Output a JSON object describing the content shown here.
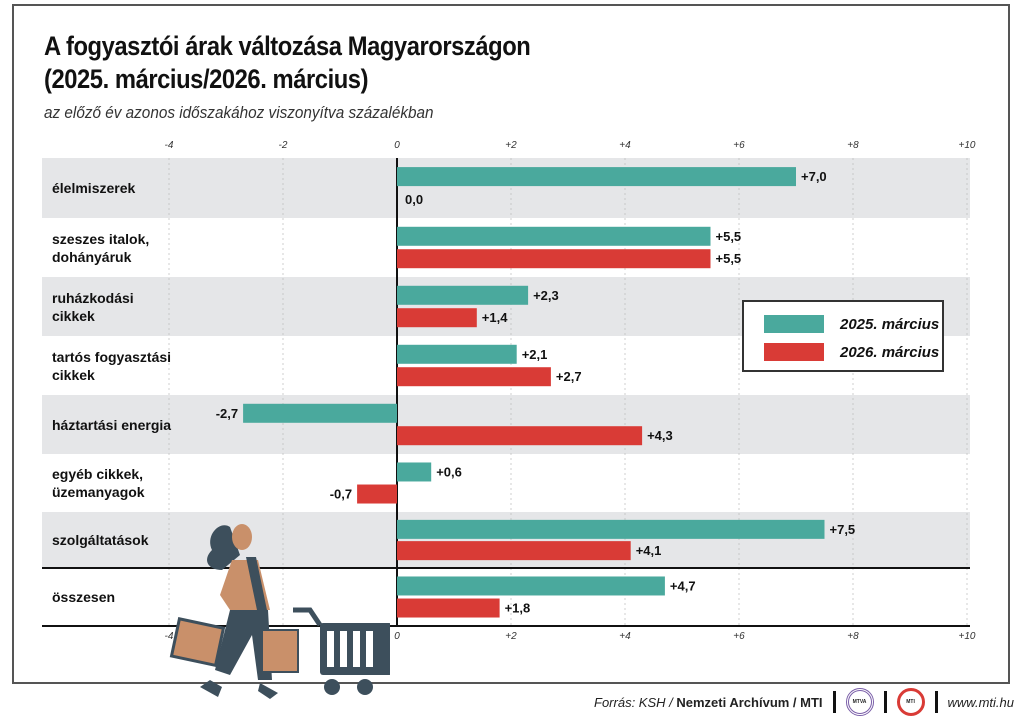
{
  "title_line1": "A fogyasztói árak változása Magyarországon",
  "title_line2": "(2025. március/2026. március)",
  "subtitle": "az előző év azonos időszakához viszonyítva százalékban",
  "footer": {
    "source_prefix": "Forrás: KSH / ",
    "source_bold": "Nemzeti Archívum / MTI",
    "logo1": "MTVA",
    "logo2": "MTI",
    "url": "www.mti.hu"
  },
  "colors": {
    "s2025": "#4aa99d",
    "s2026": "#d93b36",
    "row_gray": "#e5e6e8"
  },
  "chart_data": {
    "type": "bar",
    "orientation": "horizontal",
    "title": "A fogyasztói árak változása Magyarországon (2025. március/2026. március)",
    "xlim": [
      -4,
      10
    ],
    "ticks": [
      "-4",
      "-2",
      "0",
      "+2",
      "+4",
      "+6",
      "+8",
      "+10"
    ],
    "tick_values": [
      -4,
      -2,
      0,
      2,
      4,
      6,
      8,
      10
    ],
    "categories": [
      [
        "élelmiszerek"
      ],
      [
        "szeszes italok,",
        "dohányáruk"
      ],
      [
        "ruházkodási",
        "cikkek"
      ],
      [
        "tartós fogyasztási",
        "cikkek"
      ],
      [
        "háztartási energia"
      ],
      [
        "egyéb cikkek,",
        "üzemanyagok"
      ],
      [
        "szolgáltatások"
      ],
      [
        "összesen"
      ]
    ],
    "series": [
      {
        "name": "2025. március",
        "values": [
          7.0,
          5.5,
          2.3,
          2.1,
          -2.7,
          0.6,
          7.5,
          4.7
        ],
        "labels": [
          "+7,0",
          "+5,5",
          "+2,3",
          "+2,1",
          "-2,7",
          "+0,6",
          "+7,5",
          "+4,7"
        ]
      },
      {
        "name": "2026. március",
        "values": [
          0.0,
          5.5,
          1.4,
          2.7,
          4.3,
          -0.7,
          4.1,
          1.8
        ],
        "labels": [
          "0,0",
          "+5,5",
          "+1,4",
          "+2,7",
          "+4,3",
          "-0,7",
          "+4,1",
          "+1,8"
        ]
      }
    ],
    "legend": "right"
  }
}
